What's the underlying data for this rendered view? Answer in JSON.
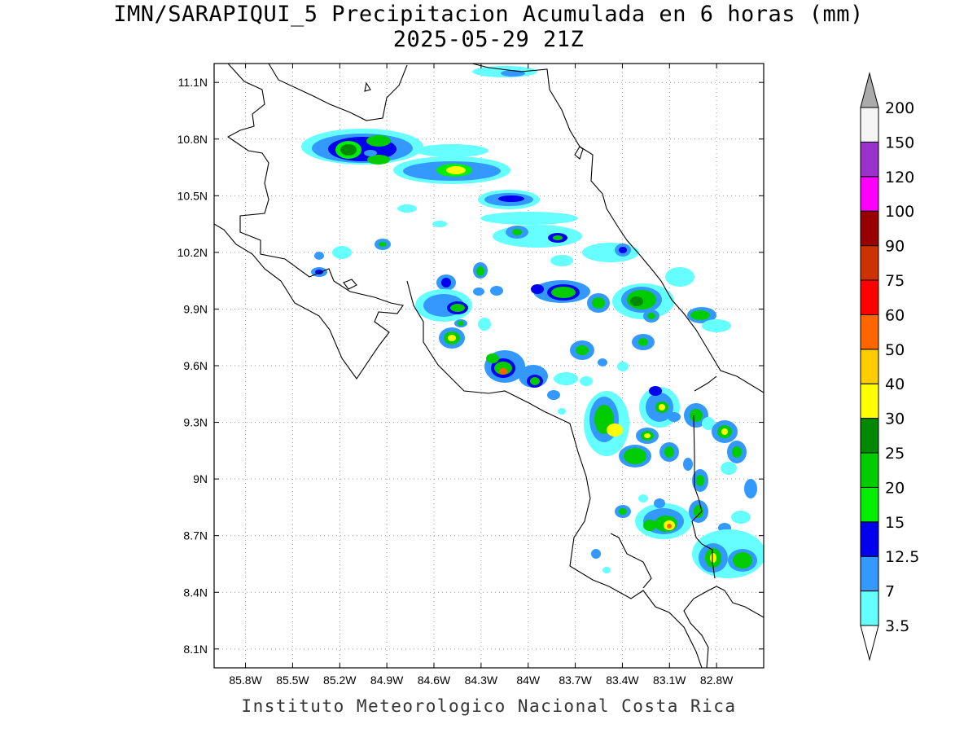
{
  "title": {
    "line1": "IMN/SARAPIQUI_5 Precipitacion Acumulada en 6 horas (mm)",
    "line2": "2025-05-29 21Z"
  },
  "footer": "Instituto Meteorologico Nacional Costa Rica",
  "chart_data": {
    "type": "heatmap",
    "x_ticks": [
      "85.8W",
      "85.5W",
      "85.2W",
      "84.9W",
      "84.6W",
      "84.3W",
      "84W",
      "83.7W",
      "83.4W",
      "83.1W",
      "82.8W"
    ],
    "y_ticks": [
      "11.1N",
      "10.8N",
      "10.5N",
      "10.2N",
      "9.9N",
      "9.6N",
      "9.3N",
      "9N",
      "8.7N",
      "8.4N",
      "8.1N"
    ],
    "xlim": [
      -86.0,
      -82.5
    ],
    "ylim": [
      8.0,
      11.2
    ],
    "grid": true,
    "colorbar": {
      "placement": "right",
      "levels": [
        "3.5",
        "7",
        "12.5",
        "15",
        "20",
        "25",
        "30",
        "40",
        "50",
        "60",
        "75",
        "90",
        "100",
        "120",
        "150",
        "200"
      ],
      "colors": [
        "#66ffff",
        "#3399ff",
        "#0000ee",
        "#00ee00",
        "#00cc00",
        "#008800",
        "#ffff00",
        "#ffcc00",
        "#ff6600",
        "#ff0000",
        "#cc3300",
        "#990000",
        "#ff00ff",
        "#9933cc",
        "#f5f5f5",
        "#aaaaaa"
      ]
    }
  }
}
